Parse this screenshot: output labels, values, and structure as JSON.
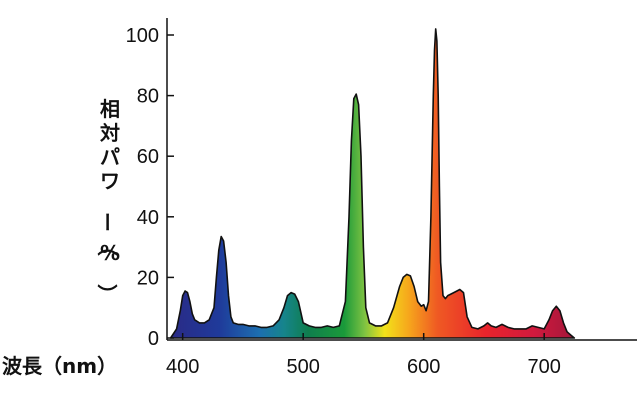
{
  "chart_data": {
    "type": "area",
    "title": "",
    "xlabel": "波長（nm）",
    "ylabel": "相対パワー（%）",
    "xlim": [
      387,
      777
    ],
    "ylim": [
      0,
      100
    ],
    "xticks": [
      400,
      500,
      600,
      700
    ],
    "yticks": [
      0,
      20,
      40,
      60,
      80,
      100
    ],
    "grid": false,
    "legend": "none",
    "fill": "visible-spectrum-gradient",
    "series": [
      {
        "x": [
          390,
          395,
          398,
          400,
          402,
          404,
          406,
          408,
          410,
          414,
          418,
          422,
          426,
          428,
          430,
          432,
          434,
          436,
          438,
          440,
          442,
          446,
          450,
          455,
          460,
          465,
          470,
          475,
          480,
          484,
          487,
          490,
          493,
          496,
          500,
          505,
          510,
          515,
          520,
          525,
          530,
          535,
          538,
          540,
          542,
          544,
          546,
          548,
          550,
          552,
          555,
          560,
          565,
          570,
          575,
          580,
          583,
          586,
          589,
          592,
          595,
          598,
          600,
          602,
          604,
          606,
          608,
          609,
          610,
          611,
          612,
          613,
          614,
          616,
          618,
          620,
          625,
          630,
          633,
          636,
          640,
          645,
          650,
          653,
          656,
          660,
          665,
          670,
          675,
          680,
          685,
          690,
          695,
          700,
          704,
          707,
          710,
          713,
          716,
          719,
          722,
          725
        ],
        "values": [
          0,
          3,
          9,
          14,
          15.5,
          15,
          12,
          8,
          6,
          5,
          5,
          6,
          10,
          20,
          29,
          33.5,
          32,
          25,
          14,
          7,
          5,
          4.5,
          4.5,
          4,
          4,
          3.5,
          3.5,
          4,
          6,
          10,
          14,
          15,
          14.5,
          12,
          5,
          4,
          3.5,
          3.5,
          4,
          3.5,
          4,
          12,
          40,
          65,
          79,
          80.5,
          77,
          60,
          30,
          10,
          5,
          4,
          4,
          5,
          10,
          17,
          20,
          21,
          20.5,
          17,
          12,
          10.5,
          11,
          9,
          12,
          40,
          80,
          95,
          102,
          98,
          80,
          50,
          25,
          14,
          13,
          14,
          15,
          16,
          15,
          7,
          3.5,
          3,
          4,
          5,
          4,
          3.5,
          4.5,
          3.5,
          3,
          3,
          3,
          4,
          3.5,
          3,
          6,
          9,
          10.5,
          9,
          5,
          2,
          1,
          0
        ]
      }
    ]
  }
}
